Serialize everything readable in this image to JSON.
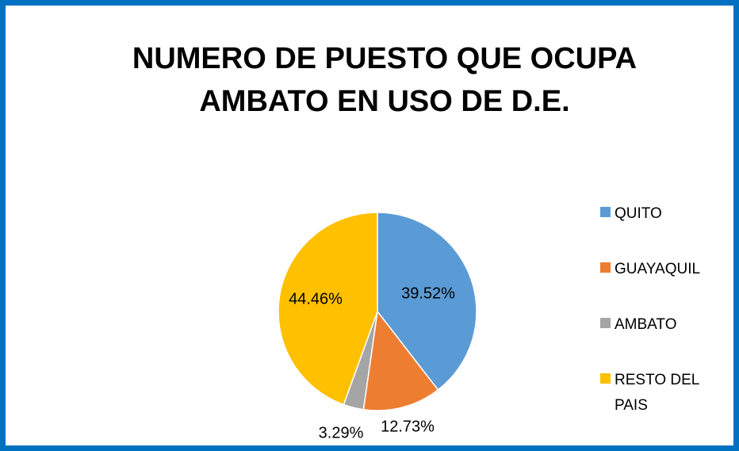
{
  "chart_data": {
    "type": "pie",
    "title": "NUMERO DE PUESTO QUE OCUPA AMBATO EN USO DE D.E.",
    "categories": [
      "QUITO",
      "GUAYAQUIL",
      "AMBATO",
      "RESTO DEL PAIS"
    ],
    "values": [
      39.52,
      12.73,
      3.29,
      44.46
    ],
    "value_labels": [
      "39.52%",
      "12.73%",
      "3.29%",
      "44.46%"
    ],
    "colors": [
      "#5b9bd5",
      "#ed7d31",
      "#a5a5a5",
      "#ffc000"
    ],
    "legend": "right"
  }
}
